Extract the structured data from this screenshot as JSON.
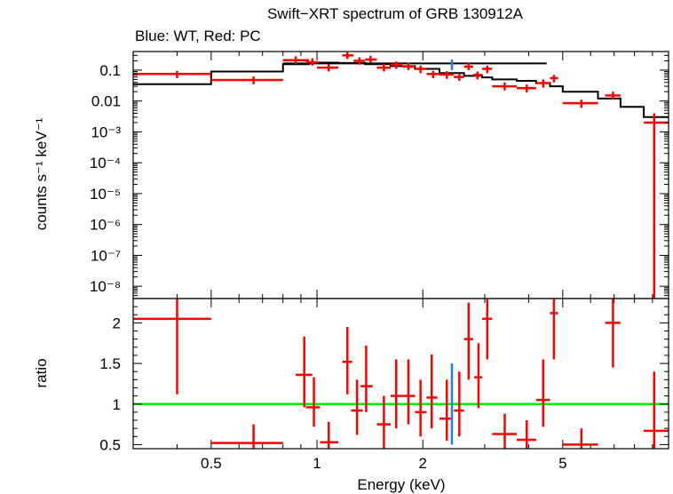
{
  "title": "Swift−XRT spectrum of GRB 130912A",
  "subtitle": "Blue: WT, Red: PC",
  "colors": {
    "pc": "#ff0000",
    "wt": "#1f7fe0",
    "model": "#000000",
    "unity_line": "#00ee00",
    "frame": "#000000"
  },
  "chart_data": [
    {
      "type": "scatter",
      "panel": "spectrum",
      "ylabel": "counts s⁻¹ keV⁻¹",
      "xlabel": "",
      "xscale": "log",
      "yscale": "log",
      "xlim": [
        0.3,
        10.0
      ],
      "ylim": [
        4e-09,
        0.4
      ],
      "y_ticks": [
        {
          "value": 0.1,
          "label": "0.1"
        },
        {
          "value": 0.01,
          "label": "0.01"
        },
        {
          "value": 0.001,
          "label": "10⁻³"
        },
        {
          "value": 0.0001,
          "label": "10⁻⁴"
        },
        {
          "value": 1e-05,
          "label": "10⁻⁵"
        },
        {
          "value": 1e-06,
          "label": "10⁻⁶"
        },
        {
          "value": 1e-07,
          "label": "10⁻⁷"
        },
        {
          "value": 1e-08,
          "label": "10⁻⁸"
        }
      ],
      "series": [
        {
          "points": [
            {
              "x": 0.4,
              "xlo": 0.3,
              "xhi": 0.5,
              "y": 0.075,
              "ylo": 0.055,
              "yhi": 0.095
            },
            {
              "x": 0.66,
              "xlo": 0.5,
              "xhi": 0.8,
              "y": 0.048,
              "ylo": 0.035,
              "yhi": 0.062
            },
            {
              "x": 0.87,
              "xlo": 0.8,
              "xhi": 0.95,
              "y": 0.21,
              "ylo": 0.16,
              "yhi": 0.28
            },
            {
              "x": 0.97,
              "xlo": 0.93,
              "xhi": 1.01,
              "y": 0.18,
              "ylo": 0.14,
              "yhi": 0.24
            },
            {
              "x": 1.08,
              "xlo": 1.0,
              "xhi": 1.15,
              "y": 0.12,
              "ylo": 0.09,
              "yhi": 0.16
            },
            {
              "x": 1.22,
              "xlo": 1.18,
              "xhi": 1.27,
              "y": 0.3,
              "ylo": 0.23,
              "yhi": 0.38
            },
            {
              "x": 1.32,
              "xlo": 1.27,
              "xhi": 1.37,
              "y": 0.2,
              "ylo": 0.15,
              "yhi": 0.26
            },
            {
              "x": 1.42,
              "xlo": 1.37,
              "xhi": 1.48,
              "y": 0.22,
              "ylo": 0.17,
              "yhi": 0.29
            },
            {
              "x": 1.55,
              "xlo": 1.48,
              "xhi": 1.62,
              "y": 0.12,
              "ylo": 0.09,
              "yhi": 0.16
            },
            {
              "x": 1.68,
              "xlo": 1.62,
              "xhi": 1.75,
              "y": 0.15,
              "ylo": 0.11,
              "yhi": 0.19
            },
            {
              "x": 1.82,
              "xlo": 1.75,
              "xhi": 1.9,
              "y": 0.13,
              "ylo": 0.1,
              "yhi": 0.17
            },
            {
              "x": 1.97,
              "xlo": 1.9,
              "xhi": 2.05,
              "y": 0.11,
              "ylo": 0.08,
              "yhi": 0.14
            },
            {
              "x": 2.14,
              "xlo": 2.05,
              "xhi": 2.23,
              "y": 0.075,
              "ylo": 0.055,
              "yhi": 0.095
            },
            {
              "x": 2.34,
              "xlo": 2.23,
              "xhi": 2.45,
              "y": 0.072,
              "ylo": 0.052,
              "yhi": 0.092
            },
            {
              "x": 2.54,
              "xlo": 2.45,
              "xhi": 2.62,
              "y": 0.06,
              "ylo": 0.045,
              "yhi": 0.075
            },
            {
              "x": 2.7,
              "xlo": 2.62,
              "xhi": 2.78,
              "y": 0.13,
              "ylo": 0.1,
              "yhi": 0.17
            },
            {
              "x": 2.86,
              "xlo": 2.78,
              "xhi": 2.95,
              "y": 0.07,
              "ylo": 0.05,
              "yhi": 0.09
            },
            {
              "x": 3.05,
              "xlo": 2.95,
              "xhi": 3.15,
              "y": 0.11,
              "ylo": 0.08,
              "yhi": 0.14
            },
            {
              "x": 3.42,
              "xlo": 3.15,
              "xhi": 3.7,
              "y": 0.03,
              "ylo": 0.022,
              "yhi": 0.04
            },
            {
              "x": 3.95,
              "xlo": 3.7,
              "xhi": 4.2,
              "y": 0.026,
              "ylo": 0.019,
              "yhi": 0.034
            },
            {
              "x": 4.4,
              "xlo": 4.2,
              "xhi": 4.6,
              "y": 0.038,
              "ylo": 0.027,
              "yhi": 0.05
            },
            {
              "x": 4.72,
              "xlo": 4.6,
              "xhi": 4.85,
              "y": 0.055,
              "ylo": 0.04,
              "yhi": 0.07
            },
            {
              "x": 5.65,
              "xlo": 5.0,
              "xhi": 6.3,
              "y": 0.0085,
              "ylo": 0.006,
              "yhi": 0.011
            },
            {
              "x": 6.95,
              "xlo": 6.6,
              "xhi": 7.3,
              "y": 0.015,
              "ylo": 0.011,
              "yhi": 0.02
            },
            {
              "x": 9.1,
              "xlo": 8.5,
              "xhi": 10.0,
              "y": 0.002,
              "ylo": 4e-09,
              "yhi": 0.004
            }
          ]
        },
        {
          "points": [
            {
              "x": 2.42,
              "xlo": 2.42,
              "xhi": 2.42,
              "y": 0.16,
              "ylo": 0.1,
              "yhi": 0.22
            }
          ]
        }
      ],
      "model_steps": [
        {
          "x0": 0.3,
          "x1": 0.5,
          "y": 0.035
        },
        {
          "x0": 0.5,
          "x1": 0.8,
          "y": 0.09
        },
        {
          "x0": 0.8,
          "x1": 0.95,
          "y": 0.155
        },
        {
          "x0": 0.95,
          "x1": 1.15,
          "y": 0.175
        },
        {
          "x0": 1.15,
          "x1": 1.37,
          "y": 0.17
        },
        {
          "x0": 1.37,
          "x1": 1.62,
          "y": 0.155
        },
        {
          "x0": 1.62,
          "x1": 1.9,
          "y": 0.135
        },
        {
          "x0": 1.9,
          "x1": 2.23,
          "y": 0.11
        },
        {
          "x0": 2.23,
          "x1": 2.62,
          "y": 0.08
        },
        {
          "x0": 2.62,
          "x1": 2.95,
          "y": 0.065
        },
        {
          "x0": 2.95,
          "x1": 3.15,
          "y": 0.058
        },
        {
          "x0": 3.15,
          "x1": 3.7,
          "y": 0.05
        },
        {
          "x0": 3.7,
          "x1": 4.2,
          "y": 0.045
        },
        {
          "x0": 4.2,
          "x1": 4.6,
          "y": 0.038
        },
        {
          "x0": 4.6,
          "x1": 5.0,
          "y": 0.03
        },
        {
          "x0": 5.0,
          "x1": 6.3,
          "y": 0.02
        },
        {
          "x0": 6.3,
          "x1": 7.3,
          "y": 0.012
        },
        {
          "x0": 7.3,
          "x1": 8.5,
          "y": 0.0065
        },
        {
          "x0": 8.5,
          "x1": 10.0,
          "y": 0.003
        }
      ],
      "model_wt": {
        "x0": 0.8,
        "x1": 4.5,
        "y": 0.165
      }
    },
    {
      "type": "scatter",
      "panel": "ratio",
      "xlabel": "Energy (keV)",
      "ylabel": "ratio",
      "xscale": "log",
      "yscale": "linear",
      "xlim": [
        0.3,
        10.0
      ],
      "ylim": [
        0.45,
        2.3
      ],
      "x_ticks": [
        {
          "value": 0.5,
          "label": "0.5"
        },
        {
          "value": 1,
          "label": "1"
        },
        {
          "value": 2,
          "label": "2"
        },
        {
          "value": 5,
          "label": "5"
        }
      ],
      "y_ticks": [
        {
          "value": 0.5,
          "label": "0.5"
        },
        {
          "value": 1,
          "label": "1"
        },
        {
          "value": 1.5,
          "label": "1.5"
        },
        {
          "value": 2,
          "label": "2"
        }
      ],
      "unity": 1.0,
      "series": [
        {
          "points": [
            {
              "x": 0.4,
              "xlo": 0.3,
              "xhi": 0.5,
              "y": 2.05,
              "ylo": 1.12,
              "yhi": 2.3
            },
            {
              "x": 0.66,
              "xlo": 0.5,
              "xhi": 0.8,
              "y": 0.52,
              "ylo": 0.45,
              "yhi": 0.75
            },
            {
              "x": 0.92,
              "xlo": 0.87,
              "xhi": 0.97,
              "y": 1.36,
              "ylo": 0.96,
              "yhi": 1.83
            },
            {
              "x": 0.98,
              "xlo": 0.93,
              "xhi": 1.02,
              "y": 0.96,
              "ylo": 0.72,
              "yhi": 1.33
            },
            {
              "x": 1.08,
              "xlo": 1.02,
              "xhi": 1.15,
              "y": 0.53,
              "ylo": 0.45,
              "yhi": 0.78
            },
            {
              "x": 1.22,
              "xlo": 1.18,
              "xhi": 1.26,
              "y": 1.52,
              "ylo": 1.12,
              "yhi": 1.95
            },
            {
              "x": 1.3,
              "xlo": 1.25,
              "xhi": 1.35,
              "y": 0.92,
              "ylo": 0.62,
              "yhi": 1.3
            },
            {
              "x": 1.38,
              "xlo": 1.33,
              "xhi": 1.44,
              "y": 1.22,
              "ylo": 0.9,
              "yhi": 1.72
            },
            {
              "x": 1.55,
              "xlo": 1.48,
              "xhi": 1.62,
              "y": 0.75,
              "ylo": 0.45,
              "yhi": 1.1
            },
            {
              "x": 1.68,
              "xlo": 1.62,
              "xhi": 1.75,
              "y": 1.1,
              "ylo": 0.7,
              "yhi": 1.55
            },
            {
              "x": 1.82,
              "xlo": 1.75,
              "xhi": 1.9,
              "y": 1.1,
              "ylo": 0.75,
              "yhi": 1.55
            },
            {
              "x": 1.97,
              "xlo": 1.9,
              "xhi": 2.05,
              "y": 0.9,
              "ylo": 0.6,
              "yhi": 1.3
            },
            {
              "x": 2.12,
              "xlo": 2.05,
              "xhi": 2.2,
              "y": 1.08,
              "ylo": 0.7,
              "yhi": 1.61
            },
            {
              "x": 2.34,
              "xlo": 2.23,
              "xhi": 2.43,
              "y": 0.82,
              "ylo": 0.55,
              "yhi": 1.3
            },
            {
              "x": 2.54,
              "xlo": 2.45,
              "xhi": 2.62,
              "y": 0.92,
              "ylo": 0.6,
              "yhi": 1.4
            },
            {
              "x": 2.7,
              "xlo": 2.62,
              "xhi": 2.78,
              "y": 1.8,
              "ylo": 1.3,
              "yhi": 2.25
            },
            {
              "x": 2.88,
              "xlo": 2.8,
              "xhi": 2.95,
              "y": 1.33,
              "ylo": 0.95,
              "yhi": 1.75
            },
            {
              "x": 3.05,
              "xlo": 2.95,
              "xhi": 3.15,
              "y": 2.05,
              "ylo": 1.55,
              "yhi": 2.3
            },
            {
              "x": 3.42,
              "xlo": 3.15,
              "xhi": 3.7,
              "y": 0.63,
              "ylo": 0.45,
              "yhi": 0.88
            },
            {
              "x": 3.95,
              "xlo": 3.7,
              "xhi": 4.2,
              "y": 0.56,
              "ylo": 0.45,
              "yhi": 0.8
            },
            {
              "x": 4.4,
              "xlo": 4.2,
              "xhi": 4.6,
              "y": 1.05,
              "ylo": 0.72,
              "yhi": 1.55
            },
            {
              "x": 4.72,
              "xlo": 4.6,
              "xhi": 4.85,
              "y": 2.12,
              "ylo": 1.55,
              "yhi": 2.3
            },
            {
              "x": 5.65,
              "xlo": 5.0,
              "xhi": 6.3,
              "y": 0.5,
              "ylo": 0.45,
              "yhi": 0.7
            },
            {
              "x": 6.95,
              "xlo": 6.6,
              "xhi": 7.3,
              "y": 2.0,
              "ylo": 1.45,
              "yhi": 2.3
            },
            {
              "x": 9.1,
              "xlo": 8.5,
              "xhi": 10.0,
              "y": 0.67,
              "ylo": 0.45,
              "yhi": 1.4
            }
          ]
        },
        {
          "points": [
            {
              "x": 2.42,
              "xlo": 2.42,
              "xhi": 2.42,
              "y": 1.0,
              "ylo": 0.5,
              "yhi": 1.5
            }
          ]
        }
      ]
    }
  ]
}
